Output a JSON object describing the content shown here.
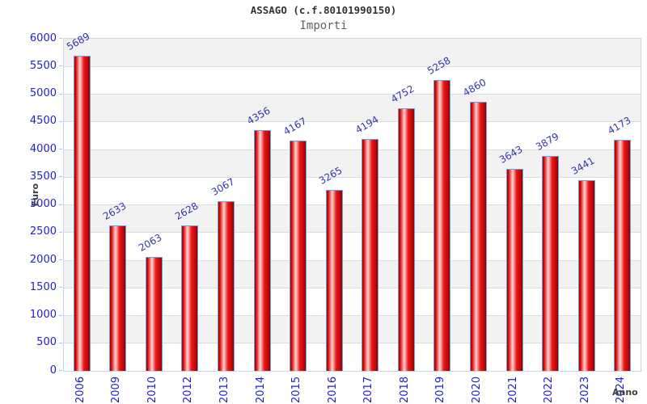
{
  "header": {
    "title": "ASSAGO (c.f.80101990150)",
    "subtitle": "Importi"
  },
  "chart_data": {
    "type": "bar",
    "title": "ASSAGO (c.f.80101990150)",
    "subtitle": "Importi",
    "categories": [
      "2006",
      "2009",
      "2010",
      "2012",
      "2013",
      "2014",
      "2015",
      "2016",
      "2017",
      "2018",
      "2019",
      "2020",
      "2021",
      "2022",
      "2023",
      "2024"
    ],
    "values": [
      5689,
      2633,
      2063,
      2628,
      3067,
      4356,
      4167,
      3265,
      4194,
      4752,
      5258,
      4860,
      3643,
      3879,
      3441,
      4173
    ],
    "xlabel": "Anno",
    "ylabel": "Euro",
    "ylim": [
      0,
      6000
    ],
    "ytick_step": 500,
    "ytick_labels": [
      "0",
      "500",
      "1000",
      "1500",
      "2000",
      "2500",
      "3000",
      "3500",
      "4000",
      "4500",
      "5000",
      "5500",
      "6000"
    ],
    "grid": "horizontal-bands",
    "legend": "none",
    "colors": {
      "bar_dark_edge": "#8e0000",
      "bar_red": "#e81616",
      "bar_highlight": "#fbd6d6",
      "bar_border": "#68a2dc",
      "tick_label": "#2121cc",
      "value_label": "#3434ad",
      "axis_title": "#404040",
      "band_gray": "#f2f2f2",
      "band_white": "#ffffff",
      "gridline": "#dcdcdc",
      "plot_border": "#ccd6e2"
    }
  }
}
